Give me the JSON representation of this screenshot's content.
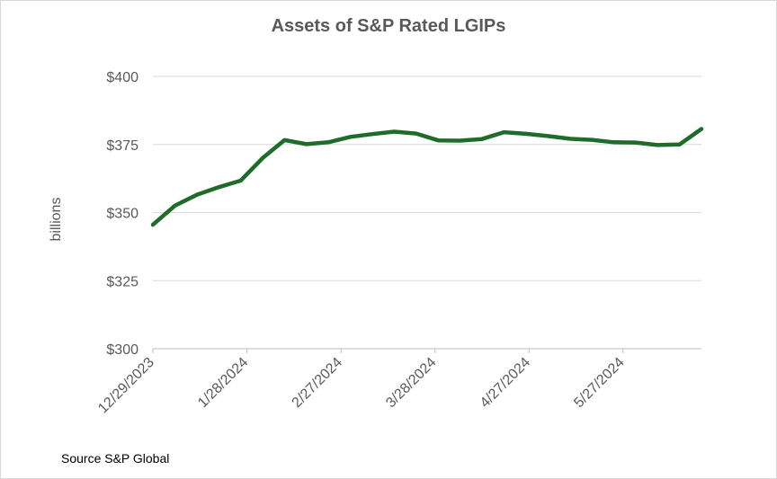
{
  "chart_data": {
    "type": "line",
    "title": "Assets of S&P Rated LGIPs",
    "xlabel": "",
    "ylabel": "billions",
    "ylim": [
      300,
      400
    ],
    "y_ticks": [
      300,
      325,
      350,
      375,
      400
    ],
    "y_tick_labels": [
      "$300",
      "$325",
      "$350",
      "$375",
      "$400"
    ],
    "x_tick_labels": [
      "12/29/2023",
      "1/28/2024",
      "2/27/2024",
      "3/28/2024",
      "4/27/2024",
      "5/27/2024"
    ],
    "grid": true,
    "legend": "none",
    "series": [
      {
        "color": "#1e6b2a",
        "x": [
          "2023-12-29",
          "2024-01-05",
          "2024-01-12",
          "2024-01-19",
          "2024-01-26",
          "2024-02-02",
          "2024-02-09",
          "2024-02-16",
          "2024-02-23",
          "2024-03-01",
          "2024-03-08",
          "2024-03-15",
          "2024-03-22",
          "2024-03-29",
          "2024-04-05",
          "2024-04-12",
          "2024-04-19",
          "2024-04-26",
          "2024-05-03",
          "2024-05-10",
          "2024-05-17",
          "2024-05-24",
          "2024-05-31",
          "2024-06-07",
          "2024-06-14",
          "2024-06-21"
        ],
        "values": [
          345.5,
          352.5,
          356.5,
          359.3,
          361.7,
          370.0,
          376.6,
          375.1,
          375.8,
          377.8,
          378.8,
          379.7,
          379.0,
          376.5,
          376.4,
          377.0,
          379.5,
          378.9,
          378.1,
          377.1,
          376.7,
          375.8,
          375.7,
          374.8,
          375.0,
          380.7
        ]
      }
    ]
  },
  "source_text": "Source S&P Global"
}
